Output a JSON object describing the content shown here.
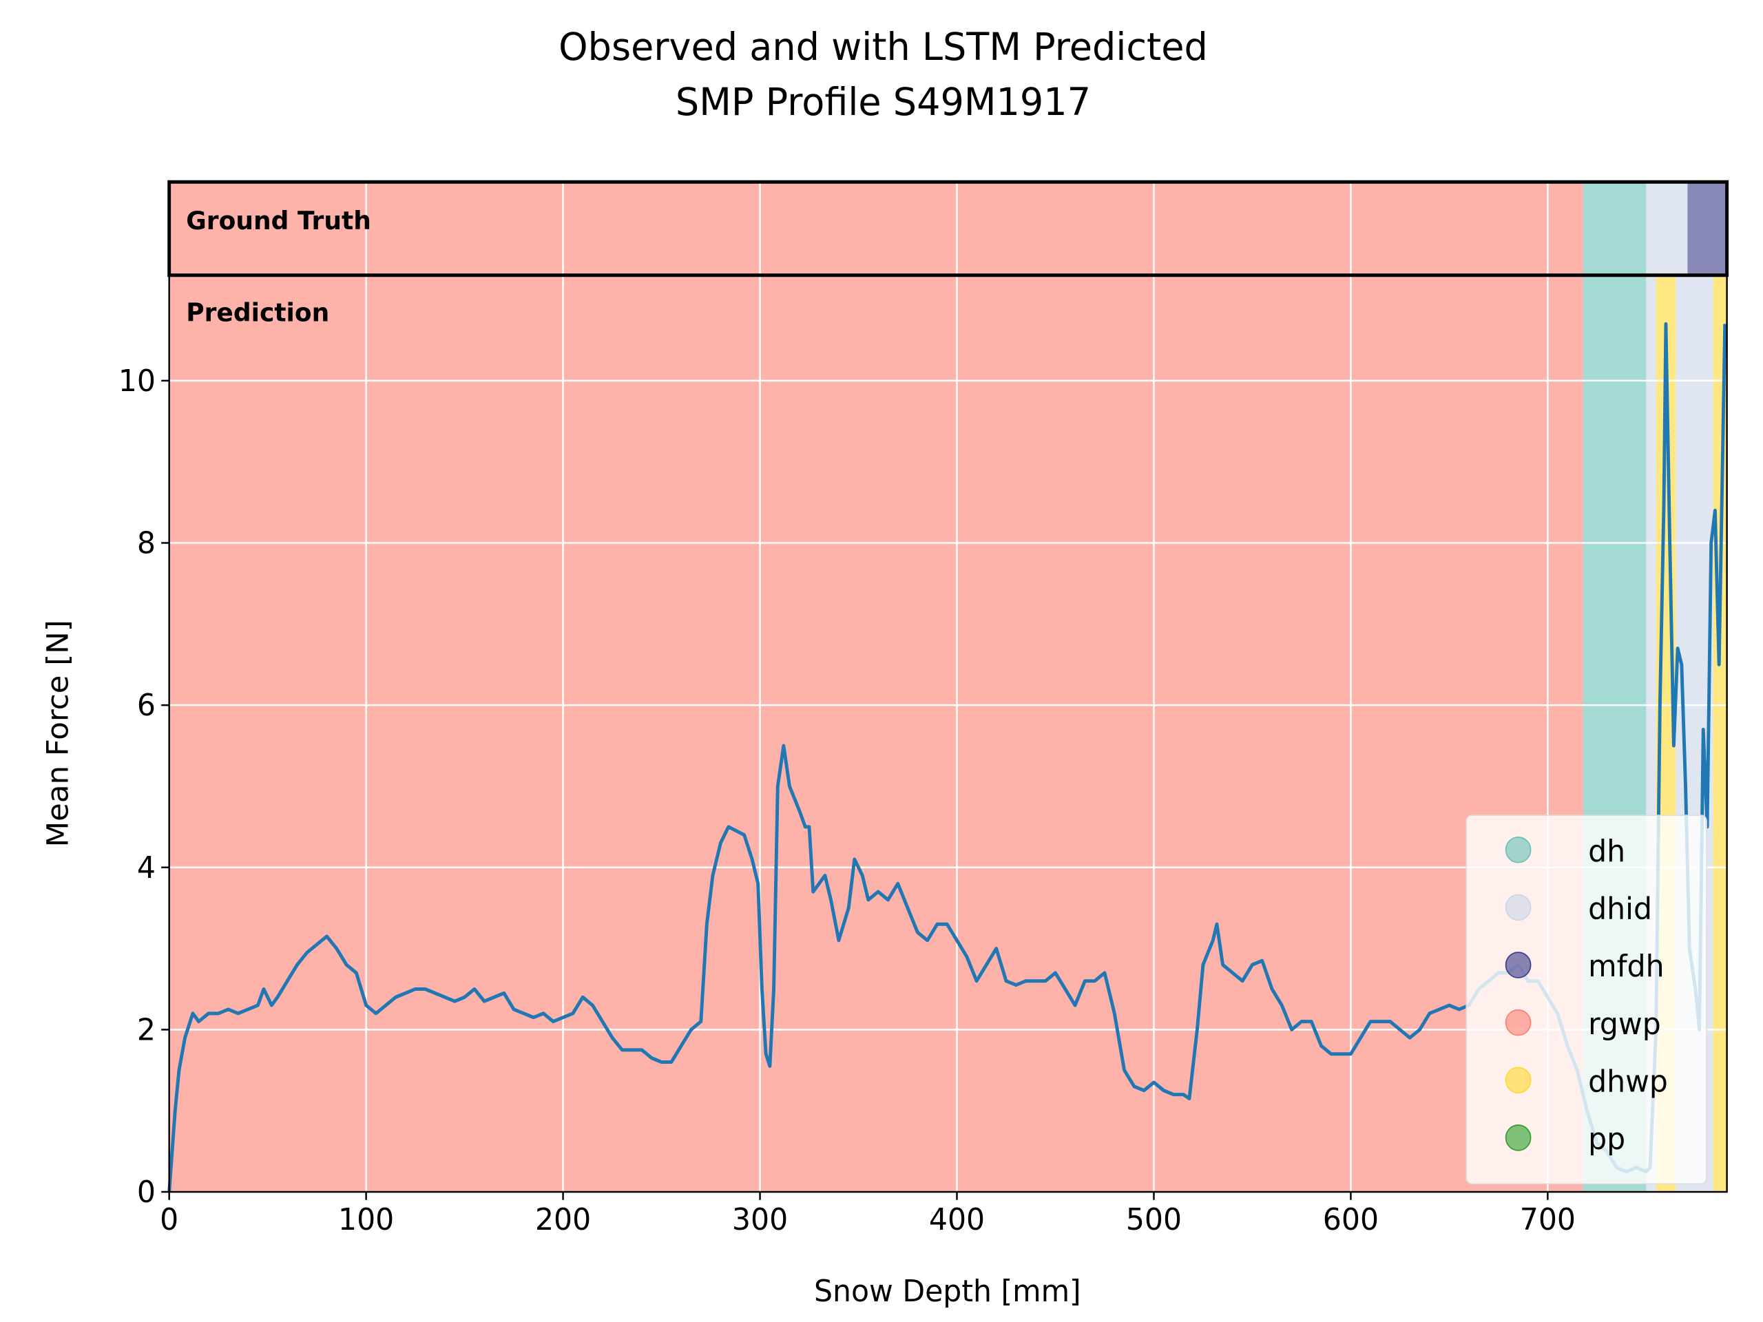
{
  "chart_data": {
    "type": "line",
    "title": "Observed and with LSTM Predicted",
    "subtitle": "SMP Profile S49M1917",
    "x_label": "Snow Depth [mm]",
    "y_label": "Mean Force [N]",
    "xlim": [
      0,
      791
    ],
    "ylim": [
      0,
      11.3
    ],
    "xticks": [
      0,
      100,
      200,
      300,
      400,
      500,
      600,
      700
    ],
    "yticks": [
      0,
      2,
      4,
      6,
      8,
      10
    ],
    "grid": true,
    "legend": "lower right",
    "classes": [
      {
        "name": "dh",
        "color": "#66c2b5"
      },
      {
        "name": "dhid",
        "color": "#cbd5e8"
      },
      {
        "name": "mfdh",
        "color": "#3b3b8b"
      },
      {
        "name": "rgwp",
        "color": "#fb8072"
      },
      {
        "name": "dhwp",
        "color": "#ffd92f"
      },
      {
        "name": "pp",
        "color": "#2ca02c"
      }
    ],
    "ground_truth_label": "Ground Truth",
    "prediction_label": "Prediction",
    "ground_truth": [
      {
        "start": 0,
        "end": 718,
        "label": "rgwp"
      },
      {
        "start": 718,
        "end": 750,
        "label": "dh"
      },
      {
        "start": 750,
        "end": 771,
        "label": "dhid"
      },
      {
        "start": 771,
        "end": 791,
        "label": "mfdh"
      }
    ],
    "prediction": [
      {
        "start": 0,
        "end": 718,
        "label": "rgwp"
      },
      {
        "start": 718,
        "end": 750,
        "label": "dh"
      },
      {
        "start": 750,
        "end": 755,
        "label": "dhid"
      },
      {
        "start": 755,
        "end": 765,
        "label": "dhwp"
      },
      {
        "start": 765,
        "end": 784,
        "label": "dhid"
      },
      {
        "start": 784,
        "end": 791,
        "label": "dhwp"
      }
    ],
    "series": [
      {
        "color": "#1f77b4",
        "x": [
          0,
          3,
          5,
          8,
          12,
          15,
          20,
          25,
          30,
          35,
          40,
          45,
          48,
          52,
          55,
          60,
          65,
          70,
          75,
          80,
          85,
          90,
          95,
          100,
          105,
          110,
          115,
          120,
          125,
          130,
          135,
          140,
          145,
          150,
          155,
          160,
          165,
          170,
          175,
          180,
          185,
          190,
          195,
          200,
          205,
          210,
          215,
          220,
          225,
          230,
          235,
          240,
          245,
          250,
          255,
          260,
          265,
          270,
          273,
          276,
          280,
          284,
          288,
          292,
          296,
          299,
          301,
          303,
          305,
          307,
          309,
          312,
          315,
          320,
          323,
          325,
          327,
          330,
          333,
          336,
          340,
          345,
          348,
          352,
          355,
          360,
          365,
          370,
          375,
          380,
          385,
          390,
          395,
          400,
          405,
          410,
          415,
          420,
          425,
          430,
          435,
          440,
          445,
          450,
          455,
          460,
          465,
          470,
          475,
          480,
          485,
          490,
          495,
          500,
          505,
          510,
          515,
          518,
          522,
          525,
          530,
          532,
          535,
          540,
          545,
          550,
          555,
          560,
          565,
          570,
          575,
          580,
          585,
          590,
          595,
          600,
          605,
          610,
          615,
          620,
          625,
          630,
          635,
          640,
          645,
          650,
          655,
          660,
          665,
          670,
          675,
          680,
          685,
          690,
          695,
          700,
          705,
          710,
          715,
          720,
          725,
          730,
          735,
          740,
          745,
          750,
          752,
          755,
          757,
          759,
          760,
          762,
          764,
          766,
          768,
          770,
          772,
          775,
          777,
          779,
          781,
          783,
          785,
          787,
          790
        ],
        "values": [
          0,
          1.0,
          1.5,
          1.9,
          2.2,
          2.1,
          2.2,
          2.2,
          2.25,
          2.2,
          2.25,
          2.3,
          2.5,
          2.3,
          2.4,
          2.6,
          2.8,
          2.95,
          3.05,
          3.15,
          3.0,
          2.8,
          2.7,
          2.3,
          2.2,
          2.3,
          2.4,
          2.45,
          2.5,
          2.5,
          2.45,
          2.4,
          2.35,
          2.4,
          2.5,
          2.35,
          2.4,
          2.45,
          2.25,
          2.2,
          2.15,
          2.2,
          2.1,
          2.15,
          2.2,
          2.4,
          2.3,
          2.1,
          1.9,
          1.75,
          1.75,
          1.75,
          1.65,
          1.6,
          1.6,
          1.8,
          2.0,
          2.1,
          3.3,
          3.9,
          4.3,
          4.5,
          4.45,
          4.4,
          4.1,
          3.8,
          2.5,
          1.7,
          1.55,
          2.5,
          5.0,
          5.5,
          5.0,
          4.7,
          4.5,
          4.5,
          3.7,
          3.8,
          3.9,
          3.6,
          3.1,
          3.5,
          4.1,
          3.9,
          3.6,
          3.7,
          3.6,
          3.8,
          3.5,
          3.2,
          3.1,
          3.3,
          3.3,
          3.1,
          2.9,
          2.6,
          2.8,
          3.0,
          2.6,
          2.55,
          2.6,
          2.6,
          2.6,
          2.7,
          2.5,
          2.3,
          2.6,
          2.6,
          2.7,
          2.2,
          1.5,
          1.3,
          1.25,
          1.35,
          1.25,
          1.2,
          1.2,
          1.15,
          2.0,
          2.8,
          3.1,
          3.3,
          2.8,
          2.7,
          2.6,
          2.8,
          2.85,
          2.5,
          2.3,
          2.0,
          2.1,
          2.1,
          1.8,
          1.7,
          1.7,
          1.7,
          1.9,
          2.1,
          2.1,
          2.1,
          2.0,
          1.9,
          2.0,
          2.2,
          2.25,
          2.3,
          2.25,
          2.3,
          2.5,
          2.6,
          2.7,
          2.7,
          2.8,
          2.6,
          2.6,
          2.4,
          2.2,
          1.8,
          1.5,
          1.0,
          0.6,
          0.5,
          0.3,
          0.25,
          0.3,
          0.25,
          0.3,
          2.0,
          6.0,
          8.5,
          10.7,
          8.0,
          5.5,
          6.7,
          6.5,
          5.0,
          3.0,
          2.5,
          2.0,
          5.7,
          4.5,
          8.0,
          8.4,
          6.5,
          10.7
        ]
      }
    ]
  }
}
